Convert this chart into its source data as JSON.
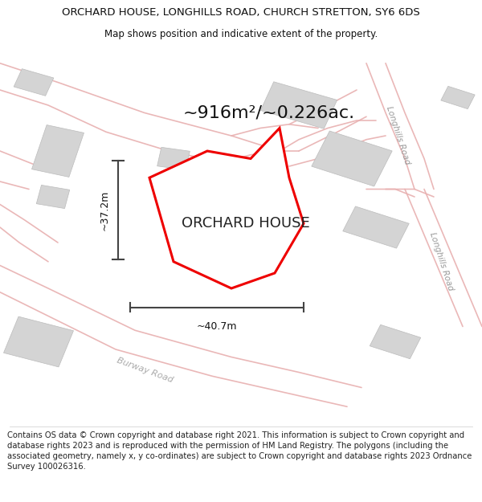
{
  "title": "ORCHARD HOUSE, LONGHILLS ROAD, CHURCH STRETTON, SY6 6DS",
  "subtitle": "Map shows position and indicative extent of the property.",
  "footer": "Contains OS data © Crown copyright and database right 2021. This information is subject to Crown copyright and database rights 2023 and is reproduced with the permission of HM Land Registry. The polygons (including the associated geometry, namely x, y co-ordinates) are subject to Crown copyright and database rights 2023 Ordnance Survey 100026316.",
  "map_bg": "#f7f2f2",
  "plot_bg": "#ffffff",
  "road_color": "#e8b0b0",
  "building_color": "#d4d4d4",
  "building_edge": "#bbbbbb",
  "boundary_color": "#ee0000",
  "boundary_fill": "#ffffff",
  "dim_color": "#444444",
  "area_text": "~916m²/~0.226ac.",
  "width_label": "~40.7m",
  "height_label": "~37.2m",
  "property_label": "ORCHARD HOUSE",
  "road_label_1": "Longhills Road",
  "road_label_2": "Longhills Road",
  "road_label_3": "Burway Road",
  "title_fontsize": 9.5,
  "subtitle_fontsize": 8.5,
  "footer_fontsize": 7.2,
  "area_fontsize": 16,
  "prop_label_fontsize": 13,
  "dim_fontsize": 9,
  "road_label_fontsize": 7.5
}
